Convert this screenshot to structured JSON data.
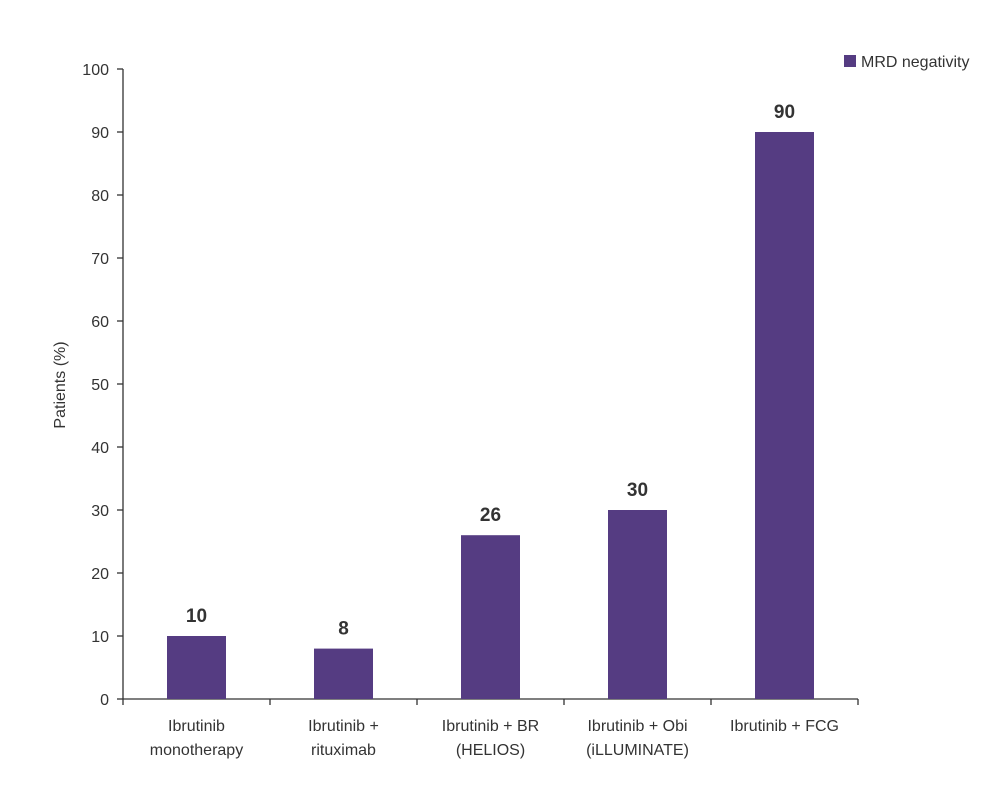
{
  "chart_data": {
    "type": "bar",
    "categories": [
      [
        "Ibrutinib",
        "monotherapy"
      ],
      [
        "Ibrutinib +",
        "rituximab"
      ],
      [
        "Ibrutinib + BR",
        "(HELIOS)"
      ],
      [
        "Ibrutinib + Obi",
        "(iLLUMINATE)"
      ],
      [
        "Ibrutinib + FCG"
      ]
    ],
    "series": [
      {
        "name": "MRD negativity",
        "values": [
          10,
          8,
          26,
          30,
          90
        ],
        "color": "#553C82"
      }
    ],
    "data_labels": [
      "10",
      "8",
      "26",
      "30",
      "90"
    ],
    "title": "",
    "xlabel": "",
    "ylabel": "Patients (%)",
    "ylim": [
      0,
      100
    ],
    "yticks": [
      0,
      10,
      20,
      30,
      40,
      50,
      60,
      70,
      80,
      90,
      100
    ],
    "grid": false,
    "legend": {
      "position": "top-right",
      "labels": [
        "MRD negativity"
      ]
    }
  }
}
